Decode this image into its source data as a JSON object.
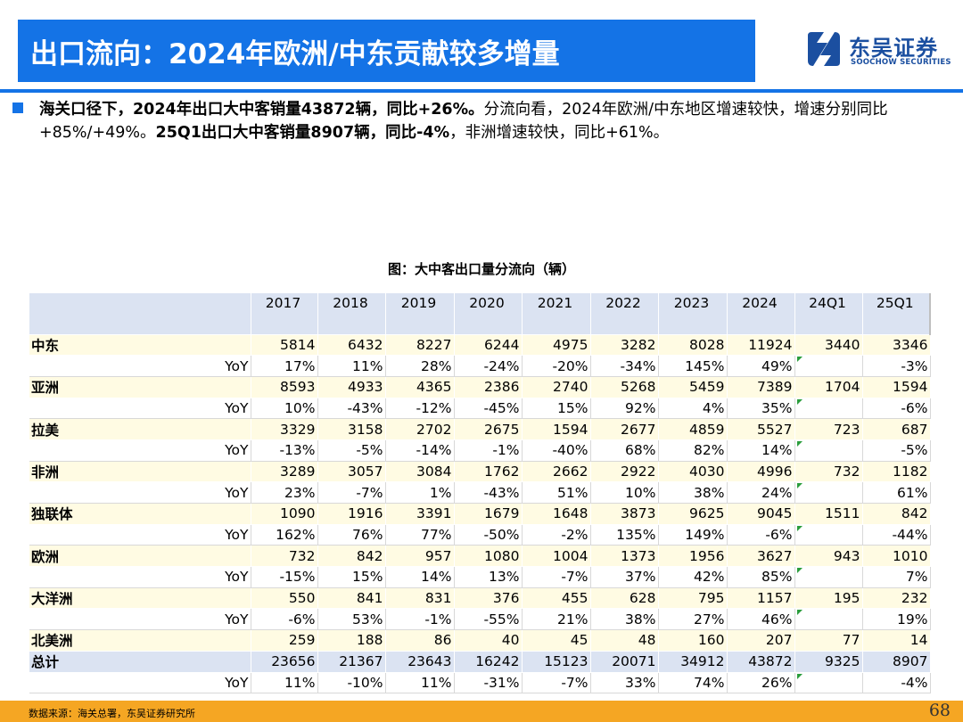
{
  "title": "出口流向：2024年欧洲/中东贡献较多增量",
  "logo": {
    "name_cn": "东吴证券",
    "name_en": "SOOCHOW SECURITIES",
    "icon": "soochow-logo-mark",
    "color": "#1b4fa0"
  },
  "accent_color": "#1473e6",
  "bullet": {
    "bold_1": "海关口径下，2024年出口大中客销量43872辆，同比+26%。",
    "text_1": "分流向看，2024年欧洲/中东地区增速较快，增速分别同比+85%/+49%。",
    "bold_2": "25Q1出口大中客销量8907辆，同比-4%",
    "text_2": "，非洲增速较快，同比+61%。"
  },
  "figure_title": "图：大中客出口量分流向（辆）",
  "table": {
    "header": [
      "",
      "2017",
      "2018",
      "2019",
      "2020",
      "2021",
      "2022",
      "2023",
      "2024",
      "24Q1",
      "25Q1"
    ],
    "rows": [
      {
        "type": "region",
        "cells": [
          "中东",
          "5814",
          "6432",
          "8227",
          "6244",
          "4975",
          "3282",
          "8028",
          "11924",
          "3440",
          "3346"
        ]
      },
      {
        "type": "yoy",
        "cells": [
          "YoY",
          "17%",
          "11%",
          "28%",
          "-24%",
          "-20%",
          "-34%",
          "145%",
          "49%",
          "",
          "-3%"
        ]
      },
      {
        "type": "region",
        "cells": [
          "亚洲",
          "8593",
          "4933",
          "4365",
          "2386",
          "2740",
          "5268",
          "5459",
          "7389",
          "1704",
          "1594"
        ]
      },
      {
        "type": "yoy",
        "cells": [
          "YoY",
          "10%",
          "-43%",
          "-12%",
          "-45%",
          "15%",
          "92%",
          "4%",
          "35%",
          "",
          "-6%"
        ]
      },
      {
        "type": "region",
        "cells": [
          "拉美",
          "3329",
          "3158",
          "2702",
          "2675",
          "1594",
          "2677",
          "4859",
          "5527",
          "723",
          "687"
        ]
      },
      {
        "type": "yoy",
        "cells": [
          "YoY",
          "-13%",
          "-5%",
          "-14%",
          "-1%",
          "-40%",
          "68%",
          "82%",
          "14%",
          "",
          "-5%"
        ]
      },
      {
        "type": "region",
        "cells": [
          "非洲",
          "3289",
          "3057",
          "3084",
          "1762",
          "2662",
          "2922",
          "4030",
          "4996",
          "732",
          "1182"
        ]
      },
      {
        "type": "yoy",
        "cells": [
          "YoY",
          "23%",
          "-7%",
          "1%",
          "-43%",
          "51%",
          "10%",
          "38%",
          "24%",
          "",
          "61%"
        ]
      },
      {
        "type": "region",
        "cells": [
          "独联体",
          "1090",
          "1916",
          "3391",
          "1679",
          "1648",
          "3873",
          "9625",
          "9045",
          "1511",
          "842"
        ]
      },
      {
        "type": "yoy",
        "cells": [
          "YoY",
          "162%",
          "76%",
          "77%",
          "-50%",
          "-2%",
          "135%",
          "149%",
          "-6%",
          "",
          "-44%"
        ]
      },
      {
        "type": "region",
        "cells": [
          "欧洲",
          "732",
          "842",
          "957",
          "1080",
          "1004",
          "1373",
          "1956",
          "3627",
          "943",
          "1010"
        ]
      },
      {
        "type": "yoy",
        "cells": [
          "YoY",
          "-15%",
          "15%",
          "14%",
          "13%",
          "-7%",
          "37%",
          "42%",
          "85%",
          "",
          "7%"
        ]
      },
      {
        "type": "region",
        "cells": [
          "大洋洲",
          "550",
          "841",
          "831",
          "376",
          "455",
          "628",
          "795",
          "1157",
          "195",
          "232"
        ]
      },
      {
        "type": "yoy",
        "cells": [
          "YoY",
          "-6%",
          "53%",
          "-1%",
          "-55%",
          "21%",
          "38%",
          "27%",
          "46%",
          "",
          "19%"
        ]
      },
      {
        "type": "region",
        "cells": [
          "北美洲",
          "259",
          "188",
          "86",
          "40",
          "45",
          "48",
          "160",
          "207",
          "77",
          "14"
        ]
      },
      {
        "type": "total",
        "cells": [
          "总计",
          "23656",
          "21367",
          "23643",
          "16242",
          "15123",
          "20071",
          "34912",
          "43872",
          "9325",
          "8907"
        ]
      },
      {
        "type": "yoy",
        "cells": [
          "YoY",
          "11%",
          "-10%",
          "11%",
          "-31%",
          "-7%",
          "33%",
          "74%",
          "26%",
          "",
          "-4%"
        ]
      }
    ]
  },
  "footer": {
    "source": "数据来源：海关总署，东吴证券研究所",
    "page": "68",
    "bar_color": "#f5a623"
  }
}
